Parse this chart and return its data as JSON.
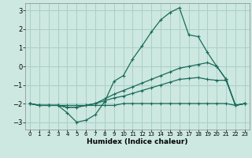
{
  "xlabel": "Humidex (Indice chaleur)",
  "bg_color": "#cce8e0",
  "grid_color": "#aacfc8",
  "line_color": "#1a6b5a",
  "xlim": [
    -0.5,
    23.5
  ],
  "ylim": [
    -3.4,
    3.4
  ],
  "yticks": [
    -3,
    -2,
    -1,
    0,
    1,
    2,
    3
  ],
  "xticks": [
    0,
    1,
    2,
    3,
    4,
    5,
    6,
    7,
    8,
    9,
    10,
    11,
    12,
    13,
    14,
    15,
    16,
    17,
    18,
    19,
    20,
    21,
    22,
    23
  ],
  "s1_x": [
    0,
    1,
    2,
    3,
    4,
    5,
    6,
    7,
    8,
    9,
    10,
    11,
    12,
    13,
    14,
    15,
    16,
    17,
    18,
    19,
    20,
    21,
    22,
    23
  ],
  "s1_y": [
    -2.0,
    -2.1,
    -2.1,
    -2.1,
    -2.5,
    -3.0,
    -2.9,
    -2.6,
    -1.9,
    -0.8,
    -0.5,
    0.4,
    1.1,
    1.85,
    2.5,
    2.9,
    3.15,
    1.7,
    1.6,
    0.75,
    0.0,
    -0.7,
    -2.1,
    -2.0
  ],
  "s2_x": [
    0,
    1,
    2,
    3,
    4,
    5,
    6,
    7,
    8,
    9,
    10,
    11,
    12,
    13,
    14,
    15,
    16,
    17,
    18,
    19,
    20,
    21,
    22,
    23
  ],
  "s2_y": [
    -2.0,
    -2.1,
    -2.1,
    -2.1,
    -2.2,
    -2.2,
    -2.1,
    -2.0,
    -1.75,
    -1.5,
    -1.3,
    -1.1,
    -0.9,
    -0.7,
    -0.5,
    -0.3,
    -0.1,
    0.0,
    0.1,
    0.2,
    0.0,
    -0.7,
    -2.1,
    -2.0
  ],
  "s3_x": [
    0,
    1,
    2,
    3,
    4,
    5,
    6,
    7,
    8,
    9,
    10,
    11,
    12,
    13,
    14,
    15,
    16,
    17,
    18,
    19,
    20,
    21,
    22,
    23
  ],
  "s3_y": [
    -2.0,
    -2.1,
    -2.1,
    -2.1,
    -2.2,
    -2.2,
    -2.1,
    -2.0,
    -1.85,
    -1.7,
    -1.6,
    -1.45,
    -1.3,
    -1.15,
    -1.0,
    -0.85,
    -0.7,
    -0.65,
    -0.6,
    -0.7,
    -0.75,
    -0.75,
    -2.1,
    -2.0
  ],
  "s4_x": [
    0,
    1,
    2,
    3,
    4,
    5,
    6,
    7,
    8,
    9,
    10,
    11,
    12,
    13,
    14,
    15,
    16,
    17,
    18,
    19,
    20,
    21,
    22,
    23
  ],
  "s4_y": [
    -2.0,
    -2.1,
    -2.1,
    -2.1,
    -2.1,
    -2.1,
    -2.1,
    -2.1,
    -2.1,
    -2.1,
    -2.0,
    -2.0,
    -2.0,
    -2.0,
    -2.0,
    -2.0,
    -2.0,
    -2.0,
    -2.0,
    -2.0,
    -2.0,
    -2.0,
    -2.1,
    -2.0
  ]
}
